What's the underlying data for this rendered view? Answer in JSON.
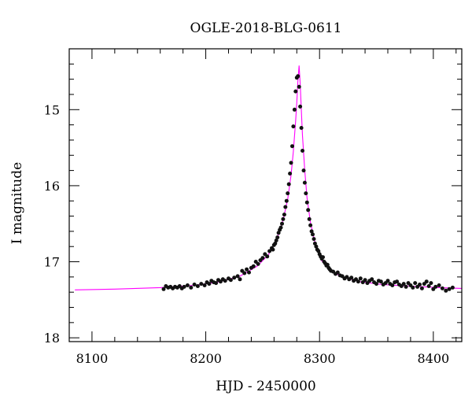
{
  "chart_data": {
    "type": "scatter",
    "title": "OGLE-2018-BLG-0611",
    "xlabel": "HJD - 2450000",
    "ylabel": "I magnitude",
    "xlim": [
      8080,
      8425
    ],
    "ylim": [
      18.05,
      14.2
    ],
    "y_inverted": true,
    "grid": false,
    "x_ticks": [
      8100,
      8200,
      8300,
      8400
    ],
    "x_tick_labels": [
      "8100",
      "8200",
      "8300",
      "8400"
    ],
    "y_ticks": [
      15,
      16,
      17,
      18
    ],
    "y_tick_labels": [
      "15",
      "16",
      "17",
      "18"
    ],
    "colors": {
      "points": "#111111",
      "model": "#ff00ff",
      "axes": "#000000"
    },
    "series": [
      {
        "kind": "points",
        "x": [
          8163,
          8165,
          8167,
          8169,
          8171,
          8173,
          8175,
          8177,
          8179,
          8181,
          8184,
          8187,
          8190,
          8193,
          8196,
          8199,
          8201,
          8203,
          8205,
          8207,
          8209,
          8211,
          8213,
          8215,
          8217,
          8220,
          8222,
          8225,
          8228,
          8230,
          8232,
          8234,
          8236,
          8238,
          8240,
          8242,
          8244,
          8246,
          8248,
          8250,
          8252,
          8254,
          8256,
          8258,
          8259,
          8260,
          8261,
          8262,
          8263,
          8264,
          8265,
          8266,
          8267,
          8268,
          8269,
          8270,
          8271,
          8272,
          8273,
          8274,
          8275,
          8276,
          8277,
          8278,
          8279,
          8280,
          8281,
          8282,
          8283,
          8284,
          8285,
          8286,
          8287,
          8288,
          8289,
          8290,
          8291,
          8292,
          8293,
          8294,
          8295,
          8296,
          8297,
          8298,
          8299,
          8300,
          8301,
          8302,
          8303,
          8304,
          8305,
          8306,
          8307,
          8308,
          8309,
          8310,
          8312,
          8314,
          8316,
          8318,
          8320,
          8322,
          8324,
          8326,
          8328,
          8330,
          8332,
          8334,
          8336,
          8338,
          8340,
          8342,
          8344,
          8346,
          8348,
          8350,
          8352,
          8354,
          8356,
          8358,
          8360,
          8362,
          8364,
          8366,
          8368,
          8370,
          8372,
          8374,
          8376,
          8378,
          8380,
          8382,
          8384,
          8386,
          8388,
          8390,
          8392,
          8394,
          8396,
          8398,
          8400,
          8402,
          8405,
          8408,
          8411,
          8414,
          8417
        ],
        "y": [
          17.36,
          17.32,
          17.34,
          17.33,
          17.35,
          17.33,
          17.34,
          17.32,
          17.35,
          17.33,
          17.31,
          17.34,
          17.3,
          17.32,
          17.29,
          17.31,
          17.27,
          17.29,
          17.25,
          17.27,
          17.28,
          17.24,
          17.26,
          17.23,
          17.25,
          17.22,
          17.24,
          17.21,
          17.19,
          17.23,
          17.12,
          17.15,
          17.1,
          17.14,
          17.08,
          17.06,
          17.0,
          17.03,
          16.98,
          16.95,
          16.9,
          16.93,
          16.86,
          16.82,
          16.84,
          16.78,
          16.76,
          16.72,
          16.68,
          16.62,
          16.58,
          16.55,
          16.5,
          16.44,
          16.38,
          16.28,
          16.2,
          16.1,
          15.98,
          15.84,
          15.7,
          15.48,
          15.22,
          15.0,
          14.76,
          14.58,
          14.56,
          14.7,
          14.96,
          15.24,
          15.54,
          15.8,
          15.96,
          16.1,
          16.22,
          16.32,
          16.44,
          16.52,
          16.6,
          16.64,
          16.7,
          16.76,
          16.8,
          16.84,
          16.86,
          16.9,
          16.93,
          16.96,
          16.94,
          17.0,
          17.02,
          17.05,
          17.04,
          17.08,
          17.1,
          17.12,
          17.13,
          17.16,
          17.14,
          17.18,
          17.19,
          17.22,
          17.2,
          17.23,
          17.21,
          17.25,
          17.23,
          17.26,
          17.22,
          17.27,
          17.24,
          17.28,
          17.25,
          17.23,
          17.27,
          17.29,
          17.25,
          17.26,
          17.3,
          17.28,
          17.25,
          17.29,
          17.31,
          17.27,
          17.26,
          17.3,
          17.32,
          17.29,
          17.33,
          17.28,
          17.31,
          17.34,
          17.28,
          17.33,
          17.3,
          17.35,
          17.29,
          17.26,
          17.32,
          17.28,
          17.36,
          17.33,
          17.31,
          17.35,
          17.38,
          17.36,
          17.34
        ]
      },
      {
        "kind": "model",
        "x": [
          8085,
          8120,
          8160,
          8190,
          8210,
          8230,
          8245,
          8255,
          8262,
          8268,
          8272,
          8275,
          8277,
          8279,
          8280,
          8281,
          8282,
          8283,
          8284,
          8285,
          8287,
          8289,
          8292,
          8296,
          8302,
          8310,
          8320,
          8335,
          8355,
          8380,
          8405,
          8425
        ],
        "y": [
          17.37,
          17.36,
          17.34,
          17.31,
          17.27,
          17.19,
          17.06,
          16.91,
          16.72,
          16.45,
          16.18,
          15.86,
          15.55,
          15.15,
          14.9,
          14.62,
          14.42,
          14.66,
          15.02,
          15.34,
          15.8,
          16.16,
          16.48,
          16.75,
          16.99,
          17.12,
          17.2,
          17.26,
          17.3,
          17.32,
          17.34,
          17.35
        ]
      }
    ]
  }
}
